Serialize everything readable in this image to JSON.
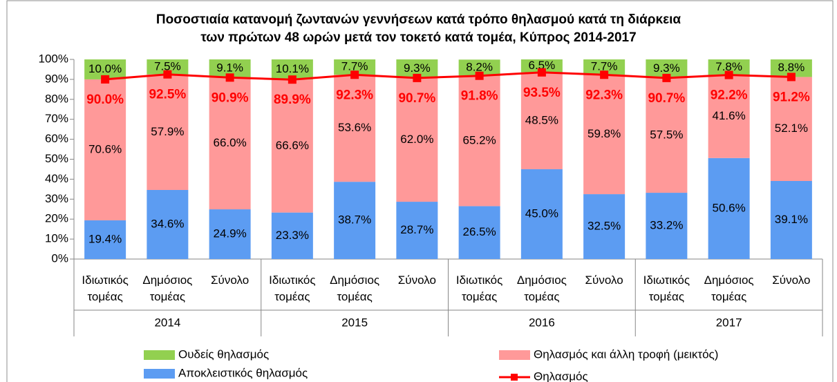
{
  "chart_data": {
    "type": "stacked_bar_line",
    "title": "Ποσοστιαία κατανομή ζωντανών γεννήσεων κατά τρόπο θηλασμού κατά τη διάρκεια\nτων πρώτων 48 ωρών μετά τον τοκετό κατά τομέα, Κύπρος 2014-2017",
    "categories": [
      "Ιδιωτικός τομέας",
      "Δημόσιος τομέας",
      "Σύνολο",
      "Ιδιωτικός τομέας",
      "Δημόσιος τομέας",
      "Σύνολο",
      "Ιδιωτικός τομέας",
      "Δημόσιος τομέας",
      "Σύνολο",
      "Ιδιωτικός τομέας",
      "Δημόσιος τομέας",
      "Σύνολο"
    ],
    "groups": [
      "2014",
      "2015",
      "2016",
      "2017"
    ],
    "ylim": [
      0,
      100
    ],
    "yticks": [
      {
        "value": 0,
        "label": "0%"
      },
      {
        "value": 10,
        "label": "10%"
      },
      {
        "value": 20,
        "label": "20%"
      },
      {
        "value": 30,
        "label": "30%"
      },
      {
        "value": 40,
        "label": "40%"
      },
      {
        "value": 50,
        "label": "50%"
      },
      {
        "value": 60,
        "label": "60%"
      },
      {
        "value": 70,
        "label": "70%"
      },
      {
        "value": 80,
        "label": "80%"
      },
      {
        "value": 90,
        "label": "90%"
      },
      {
        "value": 100,
        "label": "100%"
      }
    ],
    "series": [
      {
        "name": "Αποκλειστικός θηλασμός",
        "color": "#5c9cf2",
        "kind": "bar",
        "values": [
          19.4,
          34.6,
          24.9,
          23.3,
          38.7,
          28.7,
          26.5,
          45.0,
          32.5,
          33.2,
          50.6,
          39.1
        ],
        "value_labels": [
          "19.4%",
          "34.6%",
          "24.9%",
          "23.3%",
          "38.7%",
          "28.7%",
          "26.5%",
          "45.0%",
          "32.5%",
          "33.2%",
          "50.6%",
          "39.1%"
        ]
      },
      {
        "name": "Θηλασμός και άλλη τροφή (μεικτός)",
        "color": "#ff9999",
        "kind": "bar",
        "values": [
          70.6,
          57.9,
          66.0,
          66.6,
          53.6,
          62.0,
          65.2,
          48.5,
          59.8,
          57.5,
          41.6,
          52.1
        ],
        "value_labels": [
          "70.6%",
          "57.9%",
          "66.0%",
          "66.6%",
          "53.6%",
          "62.0%",
          "65.2%",
          "48.5%",
          "59.8%",
          "57.5%",
          "41.6%",
          "52.1%"
        ]
      },
      {
        "name": "Ουδείς θηλασμός",
        "color": "#92d050",
        "kind": "bar",
        "values": [
          10.0,
          7.5,
          9.1,
          10.1,
          7.7,
          9.3,
          8.2,
          6.5,
          7.7,
          9.3,
          7.8,
          8.8
        ],
        "value_labels": [
          "10.0%",
          "7.5%",
          "9.1%",
          "10.1%",
          "7.7%",
          "9.3%",
          "8.2%",
          "6.5%",
          "7.7%",
          "9.3%",
          "7.8%",
          "8.8%"
        ]
      },
      {
        "name": "Θηλασμός",
        "color": "#ff0000",
        "kind": "line",
        "values": [
          90.0,
          92.5,
          90.9,
          89.9,
          92.3,
          90.7,
          91.8,
          93.5,
          92.3,
          90.7,
          92.2,
          91.2
        ],
        "value_labels": [
          "90.0%",
          "92.5%",
          "90.9%",
          "89.9%",
          "92.3%",
          "90.7%",
          "91.8%",
          "93.5%",
          "92.3%",
          "90.7%",
          "92.2%",
          "91.2%"
        ]
      }
    ]
  }
}
